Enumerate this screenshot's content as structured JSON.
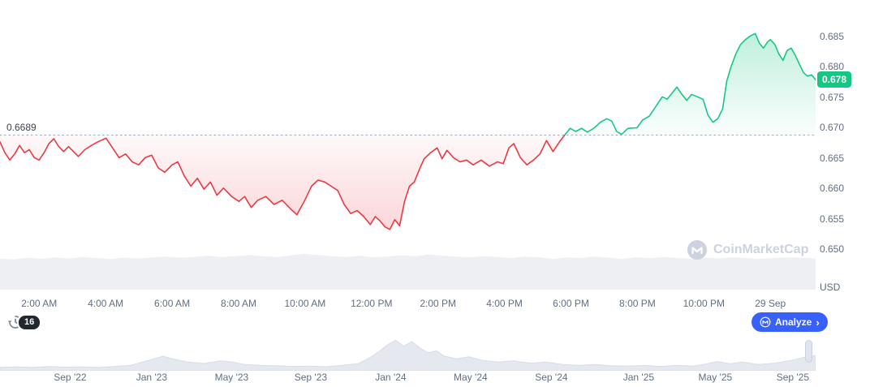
{
  "chart": {
    "baseline_label": "0.6689",
    "current_price_label": "0.678",
    "unit_label": "USD"
  },
  "toolbar": {
    "history_count": "16",
    "analyze_label": "Analyze",
    "analyze_chevron": "›"
  },
  "watermark": {
    "text": "CoinMarketCap"
  },
  "colors": {
    "green": "#16c784",
    "red": "#ea3943",
    "accent_blue": "#3861fb",
    "axis_text": "#616e85",
    "watermark_gray": "#ccd2df",
    "volume_gray": "#edeff3",
    "navigator_gray": "#e5e8ee",
    "badge_dark": "#24272e",
    "baseline_dotted": "#a9b0bf"
  },
  "chart_data": {
    "type": "line",
    "title": "Intraday price chart with baseline open price 0.6689 USD, current 0.678 USD",
    "baseline": 0.6689,
    "current_price": 0.678,
    "unit": "USD",
    "ylim": [
      0.6431,
      0.6911
    ],
    "grid": false,
    "y_ticks": [
      {
        "label": "0.685",
        "value": 0.685
      },
      {
        "label": "0.680",
        "value": 0.68
      },
      {
        "label": "0.675",
        "value": 0.675
      },
      {
        "label": "0.670",
        "value": 0.67
      },
      {
        "label": "0.665",
        "value": 0.665
      },
      {
        "label": "0.660",
        "value": 0.66
      },
      {
        "label": "0.655",
        "value": 0.655
      },
      {
        "label": "0.650",
        "value": 0.65
      }
    ],
    "x_ticks": [
      {
        "label": "2:00 AM",
        "f": 0.048
      },
      {
        "label": "4:00 AM",
        "f": 0.1295
      },
      {
        "label": "6:00 AM",
        "f": 0.211
      },
      {
        "label": "8:00 AM",
        "f": 0.2925
      },
      {
        "label": "10:00 AM",
        "f": 0.374
      },
      {
        "label": "12:00 PM",
        "f": 0.4555
      },
      {
        "label": "2:00 PM",
        "f": 0.537
      },
      {
        "label": "4:00 PM",
        "f": 0.6185
      },
      {
        "label": "6:00 PM",
        "f": 0.7
      },
      {
        "label": "8:00 PM",
        "f": 0.7815
      },
      {
        "label": "10:00 PM",
        "f": 0.863
      },
      {
        "label": "29 Sep",
        "f": 0.9445
      }
    ],
    "points": [
      [
        0.0,
        0.6678
      ],
      [
        0.006,
        0.666
      ],
      [
        0.012,
        0.6648
      ],
      [
        0.018,
        0.6658
      ],
      [
        0.024,
        0.6672
      ],
      [
        0.03,
        0.666
      ],
      [
        0.036,
        0.6665
      ],
      [
        0.042,
        0.6652
      ],
      [
        0.048,
        0.6648
      ],
      [
        0.054,
        0.666
      ],
      [
        0.06,
        0.6675
      ],
      [
        0.066,
        0.6683
      ],
      [
        0.072,
        0.667
      ],
      [
        0.078,
        0.6662
      ],
      [
        0.084,
        0.667
      ],
      [
        0.09,
        0.6662
      ],
      [
        0.096,
        0.6654
      ],
      [
        0.104,
        0.6665
      ],
      [
        0.112,
        0.6672
      ],
      [
        0.12,
        0.6678
      ],
      [
        0.13,
        0.6684
      ],
      [
        0.138,
        0.6668
      ],
      [
        0.146,
        0.6652
      ],
      [
        0.154,
        0.6658
      ],
      [
        0.162,
        0.6645
      ],
      [
        0.17,
        0.664
      ],
      [
        0.178,
        0.6652
      ],
      [
        0.186,
        0.6656
      ],
      [
        0.194,
        0.6635
      ],
      [
        0.202,
        0.6628
      ],
      [
        0.211,
        0.664
      ],
      [
        0.218,
        0.6645
      ],
      [
        0.226,
        0.6622
      ],
      [
        0.234,
        0.6605
      ],
      [
        0.242,
        0.6618
      ],
      [
        0.25,
        0.66
      ],
      [
        0.258,
        0.6612
      ],
      [
        0.266,
        0.659
      ],
      [
        0.274,
        0.6602
      ],
      [
        0.284,
        0.6588
      ],
      [
        0.293,
        0.658
      ],
      [
        0.3,
        0.6588
      ],
      [
        0.308,
        0.657
      ],
      [
        0.316,
        0.6582
      ],
      [
        0.326,
        0.6588
      ],
      [
        0.336,
        0.6575
      ],
      [
        0.346,
        0.6582
      ],
      [
        0.356,
        0.6568
      ],
      [
        0.364,
        0.6558
      ],
      [
        0.373,
        0.658
      ],
      [
        0.382,
        0.6605
      ],
      [
        0.39,
        0.6615
      ],
      [
        0.398,
        0.6612
      ],
      [
        0.406,
        0.6605
      ],
      [
        0.414,
        0.6598
      ],
      [
        0.422,
        0.6575
      ],
      [
        0.43,
        0.656
      ],
      [
        0.438,
        0.6565
      ],
      [
        0.446,
        0.6555
      ],
      [
        0.454,
        0.6542
      ],
      [
        0.46,
        0.6555
      ],
      [
        0.466,
        0.6548
      ],
      [
        0.472,
        0.6538
      ],
      [
        0.478,
        0.6534
      ],
      [
        0.484,
        0.655
      ],
      [
        0.49,
        0.654
      ],
      [
        0.496,
        0.658
      ],
      [
        0.502,
        0.6605
      ],
      [
        0.508,
        0.6612
      ],
      [
        0.514,
        0.6632
      ],
      [
        0.52,
        0.665
      ],
      [
        0.528,
        0.666
      ],
      [
        0.536,
        0.6668
      ],
      [
        0.542,
        0.665
      ],
      [
        0.548,
        0.6664
      ],
      [
        0.556,
        0.6652
      ],
      [
        0.564,
        0.6645
      ],
      [
        0.572,
        0.6648
      ],
      [
        0.58,
        0.664
      ],
      [
        0.59,
        0.6648
      ],
      [
        0.6,
        0.6638
      ],
      [
        0.61,
        0.6645
      ],
      [
        0.617,
        0.6642
      ],
      [
        0.624,
        0.6668
      ],
      [
        0.63,
        0.6675
      ],
      [
        0.638,
        0.6652
      ],
      [
        0.646,
        0.664
      ],
      [
        0.654,
        0.6648
      ],
      [
        0.662,
        0.6658
      ],
      [
        0.67,
        0.668
      ],
      [
        0.678,
        0.6662
      ],
      [
        0.686,
        0.6678
      ],
      [
        0.694,
        0.6692
      ],
      [
        0.699,
        0.67
      ],
      [
        0.706,
        0.6695
      ],
      [
        0.713,
        0.67
      ],
      [
        0.72,
        0.6694
      ],
      [
        0.728,
        0.67
      ],
      [
        0.736,
        0.671
      ],
      [
        0.744,
        0.6716
      ],
      [
        0.75,
        0.6712
      ],
      [
        0.756,
        0.6695
      ],
      [
        0.762,
        0.669
      ],
      [
        0.77,
        0.67
      ],
      [
        0.781,
        0.6701
      ],
      [
        0.788,
        0.6714
      ],
      [
        0.796,
        0.672
      ],
      [
        0.804,
        0.6736
      ],
      [
        0.812,
        0.6752
      ],
      [
        0.818,
        0.6748
      ],
      [
        0.824,
        0.6758
      ],
      [
        0.83,
        0.6768
      ],
      [
        0.836,
        0.6756
      ],
      [
        0.842,
        0.6746
      ],
      [
        0.848,
        0.6756
      ],
      [
        0.855,
        0.6752
      ],
      [
        0.862,
        0.6748
      ],
      [
        0.868,
        0.6722
      ],
      [
        0.874,
        0.671
      ],
      [
        0.88,
        0.6716
      ],
      [
        0.886,
        0.6732
      ],
      [
        0.891,
        0.6778
      ],
      [
        0.896,
        0.68
      ],
      [
        0.902,
        0.6822
      ],
      [
        0.908,
        0.6838
      ],
      [
        0.914,
        0.6846
      ],
      [
        0.92,
        0.6852
      ],
      [
        0.926,
        0.6856
      ],
      [
        0.931,
        0.684
      ],
      [
        0.936,
        0.6832
      ],
      [
        0.941,
        0.6842
      ],
      [
        0.9445,
        0.6846
      ],
      [
        0.95,
        0.6838
      ],
      [
        0.955,
        0.6822
      ],
      [
        0.96,
        0.6812
      ],
      [
        0.965,
        0.6828
      ],
      [
        0.97,
        0.6832
      ],
      [
        0.975,
        0.682
      ],
      [
        0.98,
        0.6806
      ],
      [
        0.985,
        0.6792
      ],
      [
        0.99,
        0.6786
      ],
      [
        0.995,
        0.6788
      ],
      [
        1.0,
        0.678
      ]
    ],
    "volume": [
      0.8,
      0.78,
      0.82,
      0.79,
      0.83,
      0.8,
      0.84,
      0.81,
      0.79,
      0.82,
      0.8,
      0.83,
      0.85,
      0.82,
      0.84,
      0.87,
      0.84,
      0.86,
      0.89,
      0.86,
      0.84,
      0.88,
      0.92,
      0.89,
      0.86,
      0.84,
      0.87,
      0.83,
      0.85,
      0.88,
      0.86,
      0.9,
      0.87,
      0.85,
      0.83,
      0.86,
      0.84,
      0.81,
      0.85,
      0.83,
      0.79,
      0.83,
      0.81,
      0.85,
      0.82,
      0.79,
      0.83,
      0.81,
      0.84,
      0.81,
      0.79,
      0.82,
      0.8,
      0.83,
      0.81,
      0.79,
      0.81,
      0.83,
      0.82,
      0.8
    ],
    "navigator": {
      "points": [
        [
          0.0,
          0.1
        ],
        [
          0.02,
          0.12
        ],
        [
          0.04,
          0.1
        ],
        [
          0.06,
          0.13
        ],
        [
          0.08,
          0.11
        ],
        [
          0.1,
          0.12
        ],
        [
          0.12,
          0.1
        ],
        [
          0.14,
          0.13
        ],
        [
          0.16,
          0.16
        ],
        [
          0.18,
          0.3
        ],
        [
          0.2,
          0.44
        ],
        [
          0.215,
          0.34
        ],
        [
          0.23,
          0.26
        ],
        [
          0.25,
          0.22
        ],
        [
          0.27,
          0.3
        ],
        [
          0.285,
          0.26
        ],
        [
          0.3,
          0.19
        ],
        [
          0.32,
          0.16
        ],
        [
          0.34,
          0.15
        ],
        [
          0.36,
          0.13
        ],
        [
          0.38,
          0.14
        ],
        [
          0.4,
          0.12
        ],
        [
          0.42,
          0.16
        ],
        [
          0.44,
          0.22
        ],
        [
          0.455,
          0.42
        ],
        [
          0.465,
          0.58
        ],
        [
          0.475,
          0.78
        ],
        [
          0.485,
          0.92
        ],
        [
          0.495,
          0.74
        ],
        [
          0.505,
          0.88
        ],
        [
          0.515,
          0.68
        ],
        [
          0.525,
          0.54
        ],
        [
          0.535,
          0.6
        ],
        [
          0.545,
          0.44
        ],
        [
          0.56,
          0.36
        ],
        [
          0.575,
          0.42
        ],
        [
          0.59,
          0.32
        ],
        [
          0.61,
          0.26
        ],
        [
          0.63,
          0.3
        ],
        [
          0.65,
          0.23
        ],
        [
          0.67,
          0.26
        ],
        [
          0.69,
          0.19
        ],
        [
          0.71,
          0.16
        ],
        [
          0.73,
          0.19
        ],
        [
          0.75,
          0.15
        ],
        [
          0.77,
          0.14
        ],
        [
          0.79,
          0.16
        ],
        [
          0.81,
          0.13
        ],
        [
          0.83,
          0.16
        ],
        [
          0.85,
          0.14
        ],
        [
          0.865,
          0.2
        ],
        [
          0.88,
          0.28
        ],
        [
          0.895,
          0.21
        ],
        [
          0.91,
          0.26
        ],
        [
          0.93,
          0.19
        ],
        [
          0.95,
          0.23
        ],
        [
          0.97,
          0.31
        ],
        [
          0.985,
          0.4
        ],
        [
          1.0,
          0.46
        ]
      ],
      "ticks": [
        {
          "label": "Sep '22",
          "f": 0.086
        },
        {
          "label": "Jan '23",
          "f": 0.186
        },
        {
          "label": "May '23",
          "f": 0.284
        },
        {
          "label": "Sep '23",
          "f": 0.381
        },
        {
          "label": "Jan '24",
          "f": 0.479
        },
        {
          "label": "May '24",
          "f": 0.577
        },
        {
          "label": "Sep '24",
          "f": 0.676
        },
        {
          "label": "Jan '25",
          "f": 0.783
        },
        {
          "label": "May '25",
          "f": 0.877
        },
        {
          "label": "Sep '25",
          "f": 0.972
        }
      ]
    }
  }
}
